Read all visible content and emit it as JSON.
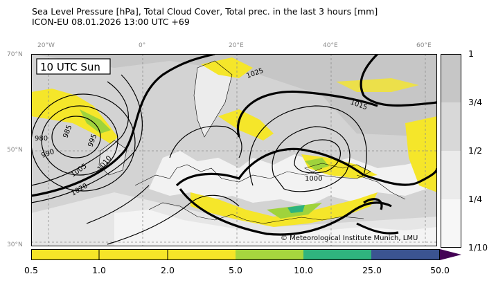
{
  "header": {
    "line1": "Sea Level Pressure [hPa], Total Cloud Cover, Total prec. in the last 3 hours [mm]",
    "line2": "ICON-EU 08.01.2026 13:00 UTC +69"
  },
  "map": {
    "time_label": "10 UTC Sun",
    "copyright": "© Meteorological Institute Munich, LMU",
    "lon_labels": [
      "20°W",
      "0°",
      "20°E",
      "40°E",
      "60°E"
    ],
    "lat_labels": [
      "70°N",
      "50°N",
      "30°N"
    ],
    "isobar_labels": [
      "980",
      "985",
      "990",
      "995",
      "1000",
      "1005",
      "1010",
      "1015",
      "1020",
      "1025"
    ],
    "colors": {
      "cloud_light": "#d9d9d9",
      "cloud_dark": "#c4c4c4",
      "land": "#ffffff",
      "yellow": "#f5e62a",
      "green": "#9fd33c",
      "teal": "#2db37c"
    }
  },
  "cloud_cover_scale": {
    "ticks": [
      "1",
      "3/4",
      "1/2",
      "1/4",
      "1/10"
    ],
    "colors": [
      "#c6c6c6",
      "#d8d8d8",
      "#ebebeb",
      "#f7f7f7"
    ]
  },
  "precip_scale": {
    "ticks": [
      "0.5",
      "1.0",
      "2.0",
      "5.0",
      "10.0",
      "25.0",
      "50.0"
    ],
    "colors": [
      "#f6e528",
      "#f6e528",
      "#f6e528",
      "#a6d63e",
      "#2fb47e",
      "#3b5491",
      "#440155"
    ]
  }
}
